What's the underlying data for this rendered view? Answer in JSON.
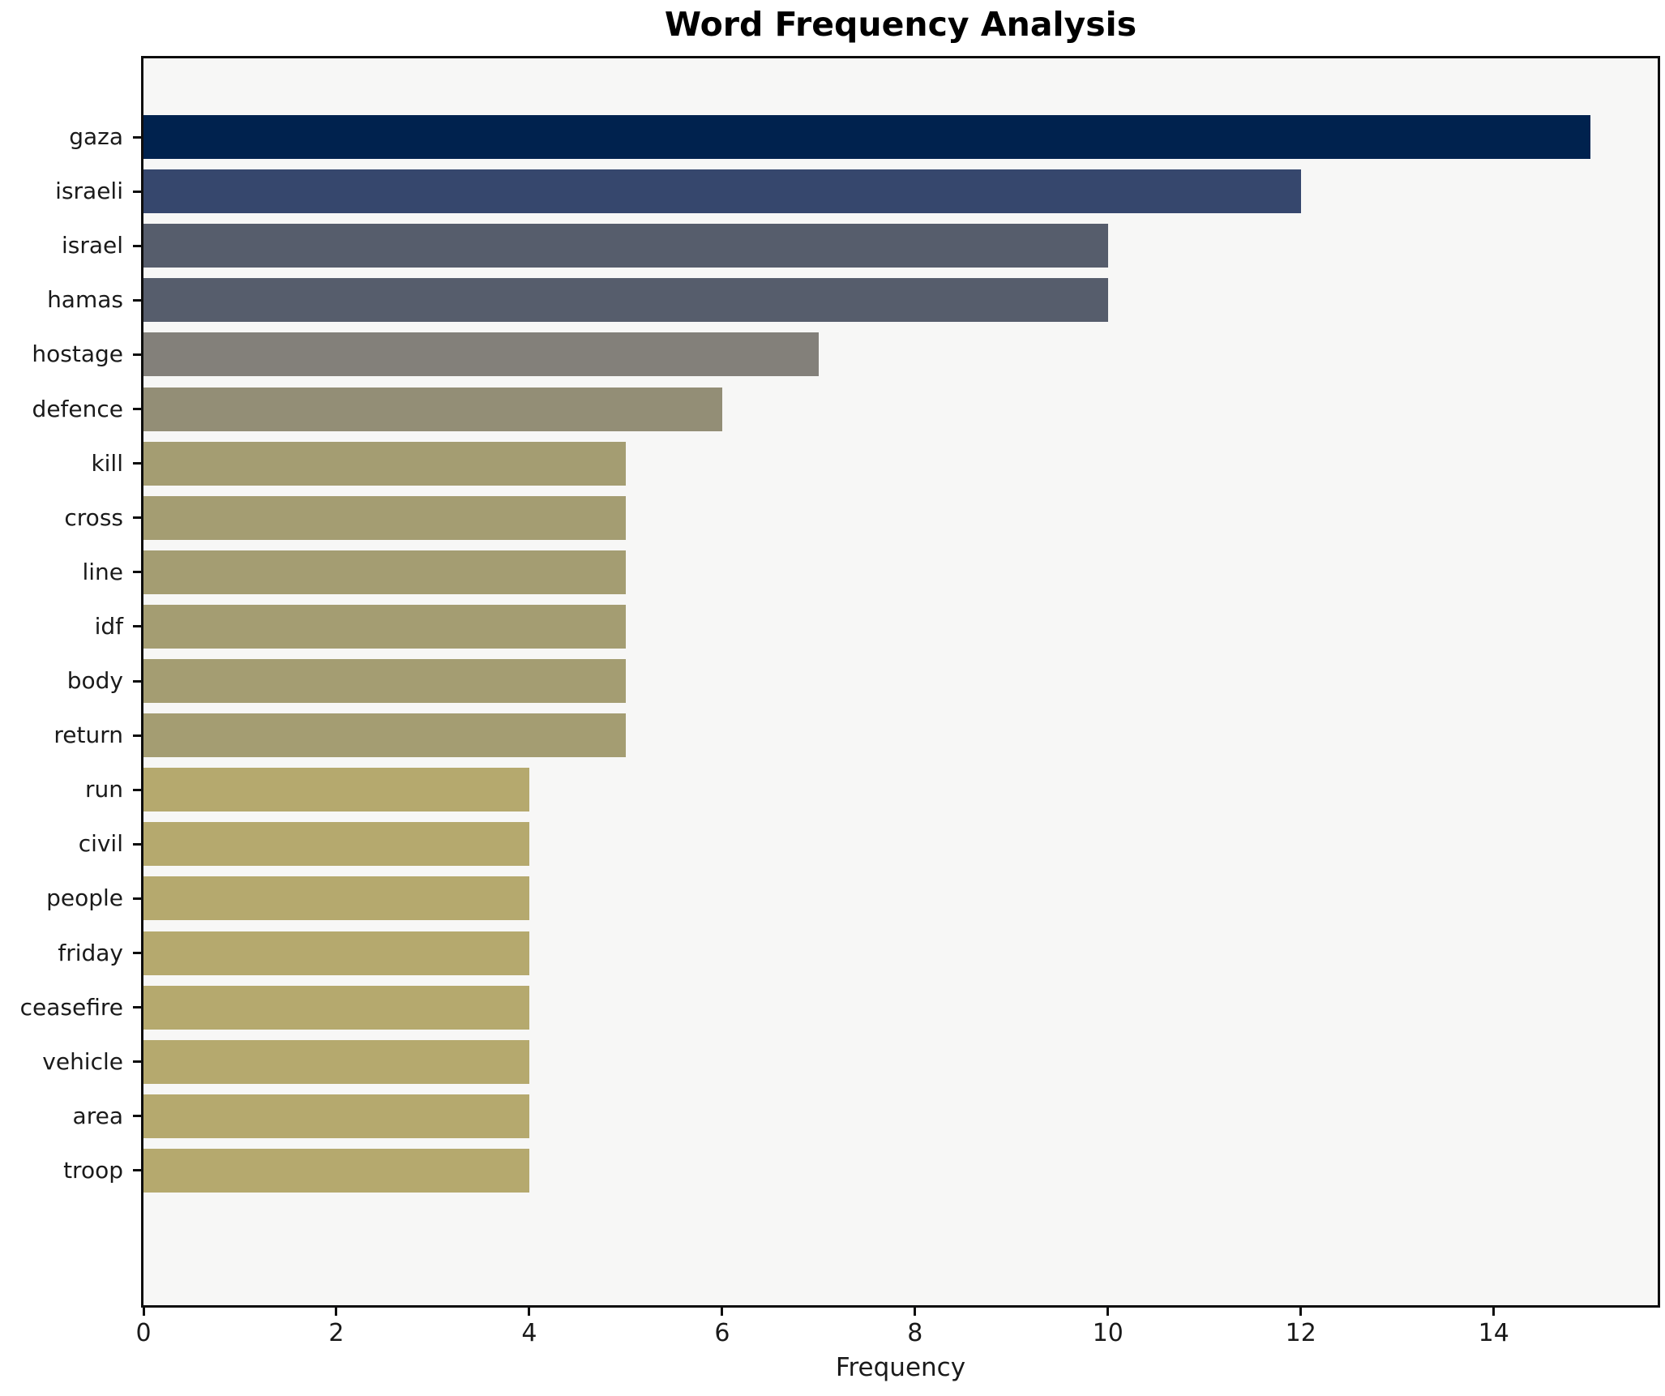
{
  "page": {
    "title": "Word Frequency Analysis"
  },
  "chart_data": {
    "type": "bar",
    "orientation": "horizontal",
    "title": "Word Frequency Analysis",
    "xlabel": "Frequency",
    "ylabel": "",
    "categories": [
      "gaza",
      "israeli",
      "israel",
      "hamas",
      "hostage",
      "defence",
      "kill",
      "cross",
      "line",
      "idf",
      "body",
      "return",
      "run",
      "civil",
      "people",
      "friday",
      "ceasefire",
      "vehicle",
      "area",
      "troop"
    ],
    "values": [
      15,
      12,
      10,
      10,
      7,
      6,
      5,
      5,
      5,
      5,
      5,
      5,
      4,
      4,
      4,
      4,
      4,
      4,
      4,
      4
    ],
    "bar_colors": [
      "#00224e",
      "#36476d",
      "#565d6c",
      "#565d6c",
      "#83807a",
      "#938e76",
      "#a49d72",
      "#a49d72",
      "#a49d72",
      "#a49d72",
      "#a49d72",
      "#a49d72",
      "#b5a96e",
      "#b5a96e",
      "#b5a96e",
      "#b5a96e",
      "#b5a96e",
      "#b5a96e",
      "#b5a96e",
      "#b5a96e"
    ],
    "xticks": [
      0,
      2,
      4,
      6,
      8,
      10,
      12,
      14
    ],
    "xlim": [
      0,
      15.7
    ],
    "grid": false,
    "legend": "none",
    "colormap": "cividis-reversed-by-value",
    "plot_background": "#f7f7f6",
    "figure_background": "#ffffff",
    "spine_color": "#0e0e0e",
    "text_color": "#1a1a1a"
  }
}
